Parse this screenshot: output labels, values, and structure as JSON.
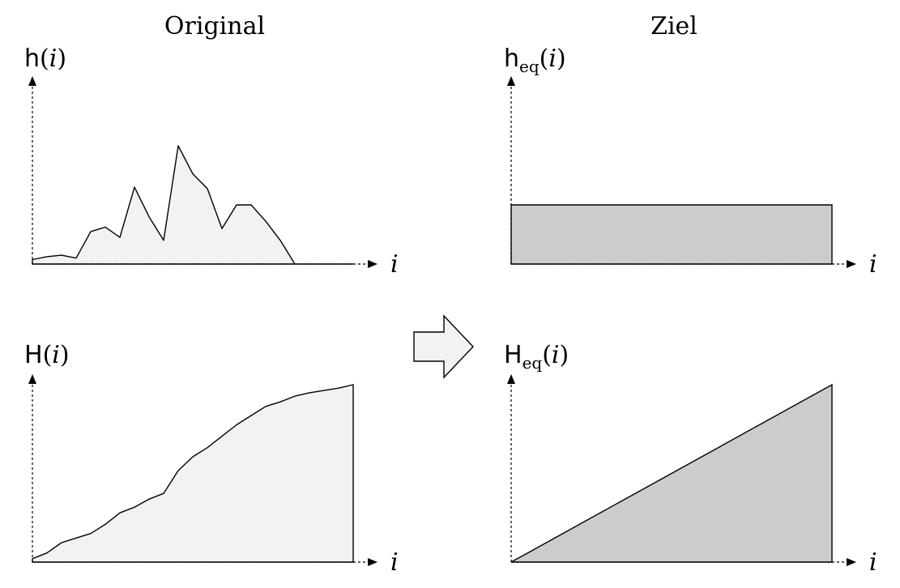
{
  "headings": {
    "left": "Original",
    "right": "Ziel"
  },
  "panels": {
    "h": {
      "func": "h",
      "sub": "",
      "arg": "i",
      "xvar": "i"
    },
    "heq": {
      "func": "h",
      "sub": "eq",
      "arg": "i",
      "xvar": "i"
    },
    "H": {
      "func": "H",
      "sub": "",
      "arg": "i",
      "xvar": "i"
    },
    "Heq": {
      "func": "H",
      "sub": "eq",
      "arg": "i",
      "xvar": "i"
    }
  },
  "colors": {
    "original_fill": "#f2f2f2",
    "target_fill": "#cccccc",
    "arrow_fill": "#f2f2f2"
  },
  "icons": {
    "transform_arrow": "right-arrow-icon"
  },
  "chart_data": [
    {
      "type": "area",
      "id": "h",
      "x": [
        0,
        1,
        2,
        3,
        4,
        5,
        6,
        7,
        8,
        9,
        10,
        11,
        12,
        13,
        14,
        15,
        16,
        17,
        18,
        19,
        20,
        21,
        22
      ],
      "values": [
        3,
        5,
        6,
        4,
        22,
        25,
        18,
        52,
        32,
        16,
        80,
        61,
        51,
        24,
        40,
        40,
        29,
        16,
        0,
        0,
        0,
        0,
        0
      ]
    },
    {
      "type": "area",
      "id": "heq",
      "x": [
        0,
        22
      ],
      "values": [
        40,
        40
      ]
    },
    {
      "type": "area",
      "id": "H",
      "x": [
        0,
        1,
        2,
        3,
        4,
        5,
        6,
        7,
        8,
        9,
        10,
        11,
        12,
        13,
        14,
        15,
        16,
        17,
        18,
        19,
        20,
        21,
        22
      ],
      "values": [
        3,
        8,
        17,
        21,
        25,
        33,
        43,
        48,
        55,
        60,
        80,
        92,
        100,
        110,
        120,
        128,
        136,
        140,
        145,
        148,
        150,
        152,
        155
      ]
    },
    {
      "type": "area",
      "id": "Heq",
      "x": [
        0,
        22
      ],
      "values": [
        0,
        155
      ]
    }
  ]
}
